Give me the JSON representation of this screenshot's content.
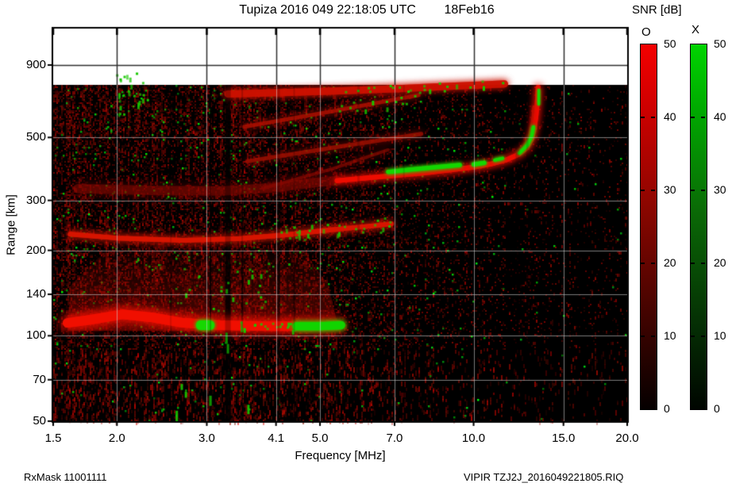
{
  "header": {
    "title": "Tupiza 2016 049 22:18:05 UTC        18Feb16"
  },
  "footer": {
    "rx_mask": "RxMask 11001111",
    "file": "VIPIR  TZJ2J_2016049221805.RIQ"
  },
  "chart_data": {
    "type": "heatmap",
    "title": "Tupiza 2016 049 22:18:05 UTC  18Feb16",
    "xlabel": "Frequency [MHz]",
    "ylabel": "Range [km]",
    "x_scale": "log",
    "y_scale": "log",
    "x_range_mhz": [
      1.5,
      20.0
    ],
    "y_range_km": [
      50,
      1210
    ],
    "data_top_km": 766,
    "x_ticks": [
      1.5,
      2.0,
      3.0,
      4.1,
      5.0,
      7.0,
      10.0,
      15.0,
      20.0
    ],
    "x_tick_labels": [
      "1.5",
      "2.0",
      "3.0",
      "4.1",
      "5.0",
      "7.0",
      "10.0",
      "15.0",
      "20.0"
    ],
    "y_ticks": [
      900,
      500,
      300,
      200,
      140,
      100,
      70,
      50
    ],
    "y_tick_labels": [
      "900",
      "500",
      "300",
      "200",
      "140",
      "100",
      "70",
      "50"
    ],
    "grid": true,
    "background": {
      "no_data_color": "#ffffff",
      "data_color": "#000000"
    },
    "colorbar": {
      "title": "SNR [dB]",
      "min": 0,
      "max": 50,
      "tick_labels": [
        "50",
        "40",
        "30",
        "20",
        "10",
        "0"
      ],
      "bars": [
        {
          "label": "O",
          "top_color": "#f40000"
        },
        {
          "label": "X",
          "top_color": "#00d400"
        }
      ]
    },
    "noise_profile": [
      [
        1.5,
        0.62
      ],
      [
        1.8,
        0.66
      ],
      [
        2.1,
        0.5
      ],
      [
        2.5,
        0.52
      ],
      [
        3.0,
        0.55
      ],
      [
        3.6,
        0.52
      ],
      [
        4.2,
        0.5
      ],
      [
        5.0,
        0.46
      ],
      [
        5.6,
        0.4
      ],
      [
        6.5,
        0.33
      ],
      [
        7.5,
        0.26
      ],
      [
        9.0,
        0.2
      ],
      [
        11.0,
        0.16
      ],
      [
        13.0,
        0.13
      ],
      [
        15.0,
        0.11
      ],
      [
        20.0,
        0.1
      ]
    ],
    "clouds": [
      {
        "id": "e-diffuse-cloud",
        "color": "#a50c00",
        "alpha": 0.5,
        "noise": 0.3,
        "fade_from_km": 104,
        "fade_to_km": 215,
        "polygon": [
          [
            1.6,
            104
          ],
          [
            5.45,
            104
          ],
          [
            5.2,
            150
          ],
          [
            4.6,
            205
          ],
          [
            2.4,
            212
          ],
          [
            1.9,
            200
          ],
          [
            1.62,
            150
          ]
        ]
      }
    ],
    "dark_stripes": [
      {
        "f": 2.55,
        "w": 2,
        "a": 0.4
      },
      {
        "f": 3.05,
        "w": 2,
        "a": 0.7
      },
      {
        "f": 3.3,
        "w": 7,
        "a": 0.8
      },
      {
        "f": 3.52,
        "w": 2,
        "a": 0.6
      },
      {
        "f": 4.15,
        "w": 3,
        "a": 0.55
      },
      {
        "f": 4.45,
        "w": 2,
        "a": 0.5
      },
      {
        "f": 5.95,
        "w": 3,
        "a": 0.5
      },
      {
        "f": 7.3,
        "w": 2,
        "a": 0.45
      },
      {
        "f": 12.2,
        "w": 5,
        "a": 0.5
      },
      {
        "f": 12.75,
        "w": 3,
        "a": 0.45
      }
    ],
    "traces": [
      {
        "id": "f-2hop-band",
        "color": "#cc1100",
        "width": 9,
        "alpha": 0.75,
        "blur": 8,
        "points": [
          [
            3.3,
            712
          ],
          [
            4.2,
            720
          ],
          [
            5.5,
            730
          ],
          [
            7.0,
            742
          ],
          [
            8.8,
            756
          ],
          [
            10.5,
            766
          ],
          [
            11.5,
            772
          ]
        ]
      },
      {
        "id": "multiple-1",
        "color": "#b01000",
        "width": 5,
        "alpha": 0.55,
        "blur": 10,
        "points": [
          [
            3.55,
            545
          ],
          [
            5.2,
            615
          ],
          [
            7.8,
            705
          ]
        ]
      },
      {
        "id": "multiple-2",
        "color": "#a50f00",
        "width": 5,
        "alpha": 0.5,
        "blur": 10,
        "points": [
          [
            3.6,
            412
          ],
          [
            5.2,
            458
          ],
          [
            7.9,
            515
          ]
        ]
      },
      {
        "id": "multiple-3",
        "color": "#900d00",
        "width": 4,
        "alpha": 0.42,
        "blur": 10,
        "points": [
          [
            3.9,
            332
          ],
          [
            5.3,
            388
          ],
          [
            6.8,
            452
          ]
        ]
      },
      {
        "id": "f-dim-band",
        "color": "#8a0a00",
        "width": 12,
        "alpha": 0.3,
        "blur": 14,
        "points": [
          [
            1.68,
            330
          ],
          [
            2.4,
            325
          ],
          [
            3.2,
            324
          ],
          [
            4.1,
            333
          ],
          [
            4.9,
            347
          ],
          [
            5.4,
            352
          ]
        ]
      },
      {
        "id": "trace-220km",
        "color": "#d81500",
        "width": 6,
        "alpha": 0.85,
        "blur": 10,
        "points": [
          [
            1.62,
            228
          ],
          [
            2.0,
            221
          ],
          [
            2.7,
            217
          ],
          [
            3.5,
            220
          ],
          [
            4.3,
            227
          ],
          [
            5.2,
            236
          ],
          [
            6.2,
            243
          ],
          [
            6.9,
            248
          ]
        ]
      },
      {
        "id": "e-layer",
        "color": "#f01000",
        "width": 12,
        "alpha": 0.97,
        "blur": 14,
        "points": [
          [
            1.6,
            111
          ],
          [
            1.78,
            114
          ],
          [
            2.05,
            119
          ],
          [
            2.35,
            116
          ],
          [
            2.7,
            111
          ],
          [
            3.2,
            109
          ],
          [
            4.0,
            108
          ],
          [
            4.8,
            108
          ],
          [
            5.45,
            109
          ]
        ]
      },
      {
        "id": "f-layer",
        "color": "#ee0d00",
        "width": 6,
        "alpha": 0.95,
        "blur": 10,
        "points": [
          [
            5.4,
            352
          ],
          [
            6.2,
            360
          ],
          [
            7.0,
            367
          ],
          [
            8.0,
            375
          ],
          [
            9.0,
            384
          ],
          [
            10.0,
            393
          ],
          [
            10.8,
            403
          ],
          [
            11.6,
            417
          ],
          [
            12.2,
            434
          ],
          [
            12.7,
            459
          ],
          [
            13.0,
            495
          ],
          [
            13.15,
            540
          ],
          [
            13.25,
            594
          ],
          [
            13.32,
            654
          ],
          [
            13.36,
            714
          ],
          [
            13.38,
            752
          ]
        ]
      },
      {
        "id": "f-layer-inner-edge",
        "color": "#c01000",
        "width": 2,
        "alpha": 0.8,
        "blur": 4,
        "points": [
          [
            12.15,
            438
          ],
          [
            12.55,
            465
          ],
          [
            12.8,
            498
          ],
          [
            12.95,
            540
          ],
          [
            13.05,
            592
          ],
          [
            13.1,
            645
          ]
        ]
      },
      {
        "id": "e-x-mode-tail",
        "color": "#12d400",
        "width": 10,
        "alpha": 0.95,
        "blur": 6,
        "points": [
          [
            4.5,
            108
          ],
          [
            5.0,
            108
          ],
          [
            5.5,
            109
          ]
        ]
      },
      {
        "id": "e-green-blob",
        "color": "#16d800",
        "width": 12,
        "alpha": 0.9,
        "blur": 5,
        "points": [
          [
            2.92,
            109
          ],
          [
            3.04,
            109
          ]
        ]
      },
      {
        "id": "f-x-mode-band",
        "color": "#14d600",
        "width": 5,
        "alpha": 0.95,
        "blur": 5,
        "points": [
          [
            6.8,
            378
          ],
          [
            7.6,
            386
          ],
          [
            8.6,
            394
          ],
          [
            9.4,
            400
          ]
        ]
      },
      {
        "id": "f-x-dash-1",
        "color": "#14d600",
        "width": 5,
        "alpha": 0.9,
        "blur": 4,
        "points": [
          [
            10.0,
            402
          ],
          [
            10.5,
            407
          ]
        ]
      },
      {
        "id": "f-x-dash-2",
        "color": "#14d600",
        "width": 4,
        "alpha": 0.9,
        "blur": 4,
        "points": [
          [
            11.0,
            416
          ],
          [
            11.4,
            422
          ]
        ]
      },
      {
        "id": "f-x-hook",
        "color": "#14d600",
        "width": 4,
        "alpha": 0.95,
        "blur": 4,
        "points": [
          [
            12.3,
            440
          ],
          [
            12.75,
            470
          ],
          [
            13.0,
            505
          ],
          [
            13.1,
            545
          ]
        ]
      },
      {
        "id": "hook-top-green-dash",
        "color": "#14d600",
        "width": 3,
        "alpha": 0.9,
        "blur": 3,
        "points": [
          [
            13.42,
            655
          ],
          [
            13.42,
            735
          ]
        ]
      }
    ],
    "specks": [
      {
        "id": "green-upper-left-cluster",
        "color": "#18c800",
        "count": 26,
        "size": 3,
        "jx": 11,
        "jy": 26,
        "points": [
          [
            1.95,
            690
          ],
          [
            2.25,
            740
          ]
        ]
      },
      {
        "id": "green-on-220km",
        "color": "#18c800",
        "count": 30,
        "size": 3,
        "jx": 8,
        "jy": 9,
        "points": [
          [
            4.2,
            228
          ],
          [
            5.5,
            238
          ],
          [
            6.9,
            248
          ]
        ]
      },
      {
        "id": "green-in-e-cloud",
        "color": "#16c400",
        "count": 24,
        "size": 3,
        "jx": 16,
        "jy": 32,
        "points": [
          [
            2.6,
            150
          ],
          [
            4.3,
            150
          ]
        ]
      },
      {
        "id": "green-on-e-band",
        "color": "#16cc00",
        "count": 18,
        "size": 3,
        "jx": 6,
        "jy": 5,
        "points": [
          [
            3.4,
            109
          ],
          [
            4.4,
            108
          ]
        ]
      },
      {
        "id": "green-on-2hop",
        "color": "#18c800",
        "count": 22,
        "size": 3,
        "jx": 9,
        "jy": 6,
        "points": [
          [
            5.6,
            735
          ],
          [
            8.5,
            757
          ],
          [
            11.3,
            772
          ]
        ]
      },
      {
        "id": "green-on-multiple1",
        "color": "#18c800",
        "count": 14,
        "size": 3,
        "jx": 8,
        "jy": 8,
        "points": [
          [
            5.4,
            620
          ],
          [
            7.7,
            700
          ]
        ]
      }
    ],
    "green_dashes": [
      [
        2.68,
        66
      ],
      [
        2.73,
        62
      ],
      [
        3.05,
        59
      ],
      [
        3.28,
        98
      ],
      [
        3.3,
        90
      ],
      [
        3.62,
        55
      ],
      [
        2.62,
        52
      ]
    ]
  }
}
